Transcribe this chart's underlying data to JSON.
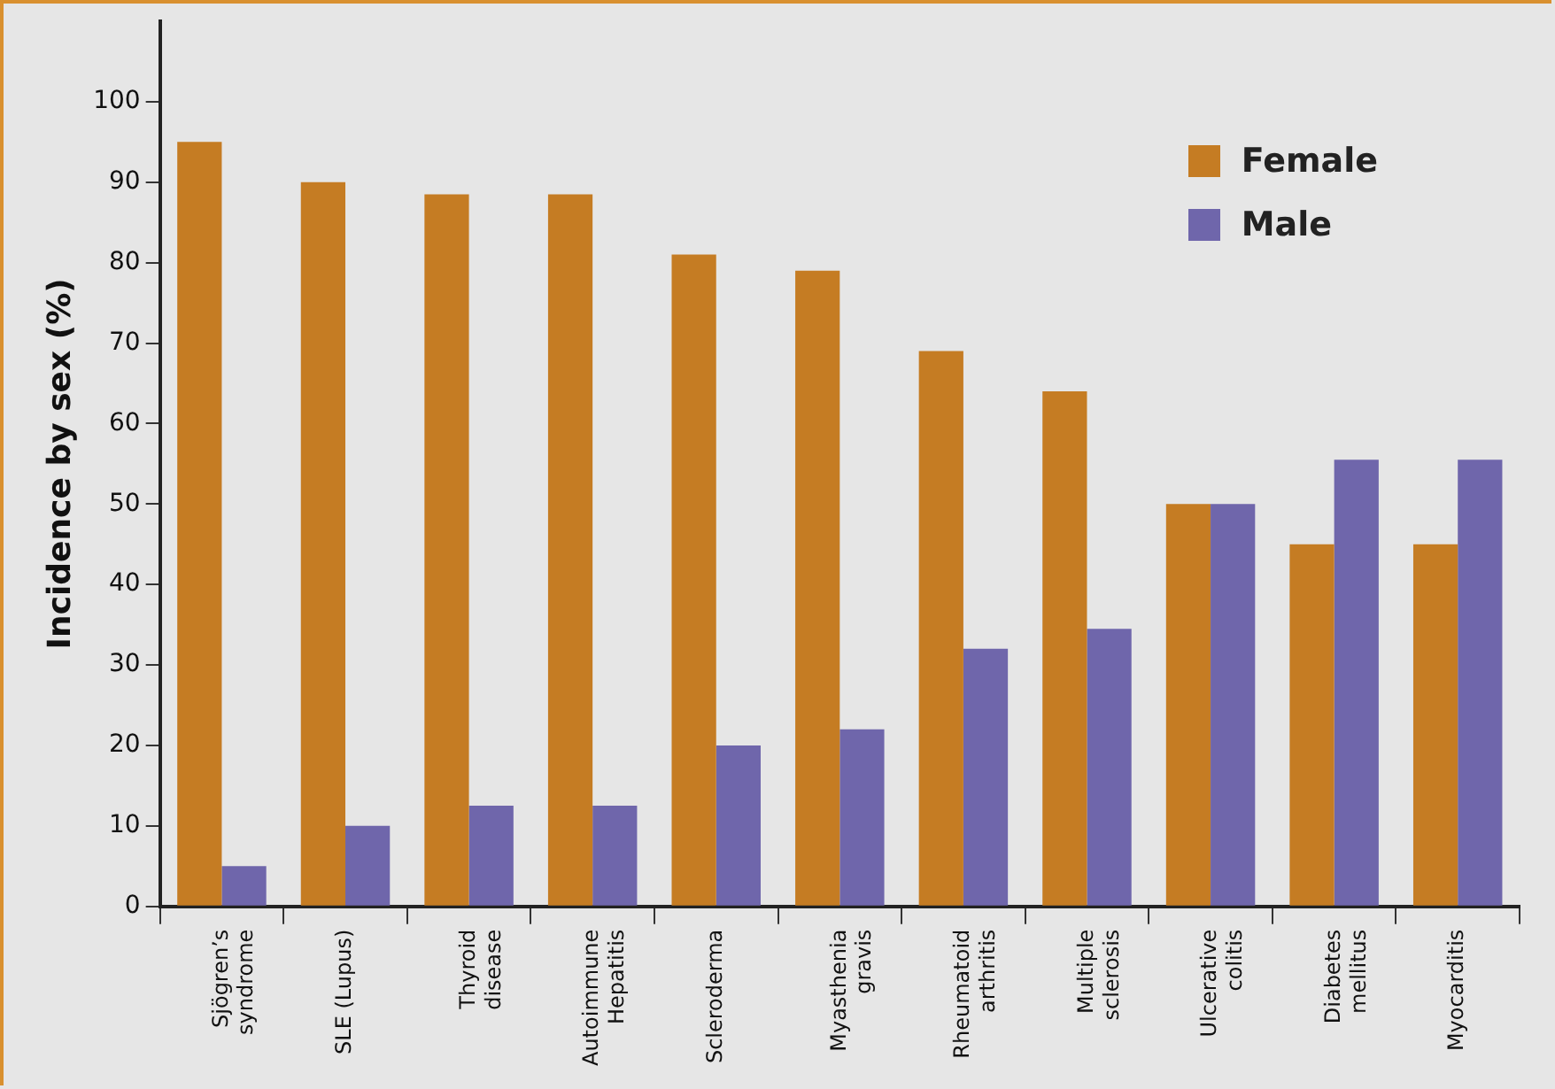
{
  "chart_data": {
    "type": "bar",
    "ylabel": "Incidence by sex (%)",
    "categories": [
      "Sjögren’s syndrome",
      "SLE (Lupus)",
      "Thyroid disease",
      "Autoimmune Hepatitis",
      "Scleroderma",
      "Myasthenia gravis",
      "Rheumatoid arthritis",
      "Multiple sclerosis",
      "Ulcerative colitis",
      "Diabetes mellitus",
      "Myocarditis"
    ],
    "series": [
      {
        "name": "Female",
        "color": "#c57c23",
        "values": [
          95,
          90,
          88.5,
          88.5,
          81,
          79,
          69,
          64,
          50,
          45,
          45
        ]
      },
      {
        "name": "Male",
        "color": "#6f66ab",
        "values": [
          5,
          10,
          12.5,
          12.5,
          20,
          22,
          32,
          34.5,
          50,
          55.5,
          55.5
        ]
      }
    ],
    "ylim": [
      0,
      110
    ],
    "yticks": [
      0,
      10,
      20,
      30,
      40,
      50,
      60,
      70,
      80,
      90,
      100
    ],
    "grid": false,
    "legend": "top right"
  }
}
